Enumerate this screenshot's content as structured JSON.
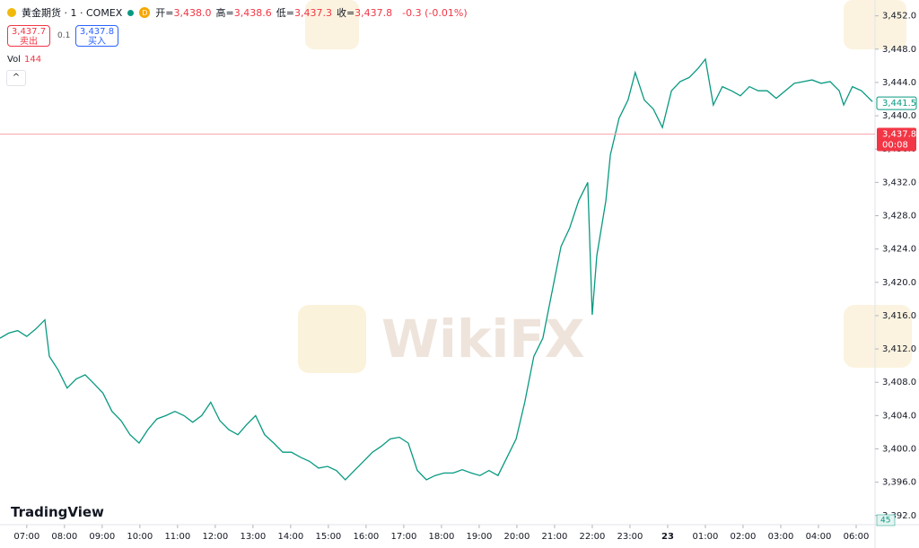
{
  "chart_data": {
    "type": "line",
    "symbol": "黄金期货 · 1 · COMEX",
    "interval_badge": "D",
    "ohlc": [
      {
        "label": "开=",
        "value": "3,438.0"
      },
      {
        "label": "高=",
        "value": "3,438.6"
      },
      {
        "label": "低=",
        "value": "3,437.3"
      },
      {
        "label": "收=",
        "value": "3,437.8"
      }
    ],
    "change": "-0.3 (-0.01%)",
    "sell": {
      "price": "3,437.7",
      "label": "卖出"
    },
    "spread": "0.1",
    "buy": {
      "price": "3,437.8",
      "label": "买入"
    },
    "volume_label": "Vol",
    "volume_value": "144",
    "volume_axis_label": "45",
    "watermark": "WikiFX",
    "brand": "TradingView",
    "color": "#089981",
    "grid": false,
    "x": [
      -0.71,
      -0.48,
      -0.24,
      0,
      0.24,
      0.48,
      0.6,
      0.83,
      1.07,
      1.31,
      1.55,
      1.79,
      2.02,
      2.26,
      2.5,
      2.74,
      2.98,
      3.21,
      3.45,
      3.69,
      3.93,
      4.17,
      4.4,
      4.64,
      4.88,
      5.12,
      5.36,
      5.6,
      5.83,
      6.07,
      6.31,
      6.55,
      6.79,
      7.02,
      7.26,
      7.5,
      7.74,
      7.98,
      8.21,
      8.45,
      8.69,
      8.93,
      9.17,
      9.4,
      9.64,
      9.88,
      10.12,
      10.36,
      10.6,
      10.83,
      11.07,
      11.31,
      11.55,
      11.79,
      12.02,
      12.26,
      12.5,
      12.74,
      12.98,
      13.21,
      13.45,
      13.69,
      13.93,
      14.17,
      14.4,
      14.64,
      14.88,
      15,
      15.12,
      15.36,
      15.48,
      15.71,
      15.95,
      16.14,
      16.38,
      16.62,
      16.86,
      17.1,
      17.33,
      17.57,
      17.81,
      18,
      18.21,
      18.45,
      18.69,
      18.93,
      19.17,
      19.4,
      19.64,
      19.88,
      20.12,
      20.36,
      20.6,
      20.83,
      21.07,
      21.31,
      21.55,
      21.67,
      21.9,
      22.14,
      22.43
    ],
    "values": [
      3413.3,
      3413.9,
      3414.2,
      3413.5,
      3414.4,
      3415.5,
      3411.1,
      3409.5,
      3407.3,
      3408.4,
      3408.9,
      3407.8,
      3406.7,
      3404.5,
      3403.4,
      3401.7,
      3400.7,
      3402.3,
      3403.6,
      3404.0,
      3404.5,
      3404.0,
      3403.2,
      3404.0,
      3405.6,
      3403.4,
      3402.3,
      3401.7,
      3402.9,
      3404.0,
      3401.7,
      3400.7,
      3399.6,
      3399.6,
      3399.0,
      3398.5,
      3397.7,
      3397.9,
      3397.4,
      3396.3,
      3397.4,
      3398.5,
      3399.6,
      3400.3,
      3401.2,
      3401.4,
      3400.7,
      3397.4,
      3396.3,
      3396.8,
      3397.1,
      3397.1,
      3397.5,
      3397.1,
      3396.8,
      3397.4,
      3396.8,
      3399.0,
      3401.2,
      3405.6,
      3411.1,
      3413.3,
      3418.8,
      3424.3,
      3426.5,
      3429.8,
      3432.0,
      3416.1,
      3423.2,
      3429.8,
      3435.3,
      3439.7,
      3441.9,
      3445.2,
      3441.9,
      3440.8,
      3438.6,
      3443.0,
      3444.1,
      3444.6,
      3445.7,
      3446.8,
      3441.3,
      3443.5,
      3443.0,
      3442.4,
      3443.5,
      3443.0,
      3443.0,
      3442.1,
      3443.0,
      3443.9,
      3444.1,
      3444.3,
      3443.9,
      3444.1,
      3443.0,
      3441.3,
      3443.5,
      3443.0,
      3441.7
    ],
    "xlim": [
      -0.71,
      22.5
    ],
    "xticks": [
      {
        "value": 0,
        "label": "07:00"
      },
      {
        "value": 1,
        "label": "08:00"
      },
      {
        "value": 2,
        "label": "09:00"
      },
      {
        "value": 3,
        "label": "10:00"
      },
      {
        "value": 4,
        "label": "11:00"
      },
      {
        "value": 5,
        "label": "12:00"
      },
      {
        "value": 6,
        "label": "13:00"
      },
      {
        "value": 7,
        "label": "14:00"
      },
      {
        "value": 8,
        "label": "15:00"
      },
      {
        "value": 9,
        "label": "16:00"
      },
      {
        "value": 10,
        "label": "17:00"
      },
      {
        "value": 11,
        "label": "18:00"
      },
      {
        "value": 12,
        "label": "19:00"
      },
      {
        "value": 13,
        "label": "20:00"
      },
      {
        "value": 14,
        "label": "21:00"
      },
      {
        "value": 15,
        "label": "22:00"
      },
      {
        "value": 16,
        "label": "23:00"
      },
      {
        "value": 17,
        "label": "23"
      },
      {
        "value": 18,
        "label": "01:00"
      },
      {
        "value": 19,
        "label": "02:00"
      },
      {
        "value": 20,
        "label": "03:00"
      },
      {
        "value": 21,
        "label": "04:00"
      },
      {
        "value": 22,
        "label": "06:00"
      }
    ],
    "ylim": [
      3390.9,
      3453.9
    ],
    "yticks": [
      {
        "value": 3392,
        "label": "3,392.0"
      },
      {
        "value": 3396,
        "label": "3,396.0"
      },
      {
        "value": 3400,
        "label": "3,400.0"
      },
      {
        "value": 3404,
        "label": "3,404.0"
      },
      {
        "value": 3408,
        "label": "3,408.0"
      },
      {
        "value": 3412,
        "label": "3,412.0"
      },
      {
        "value": 3416,
        "label": "3,416.0"
      },
      {
        "value": 3420,
        "label": "3,420.0"
      },
      {
        "value": 3424,
        "label": "3,424.0"
      },
      {
        "value": 3428,
        "label": "3,428.0"
      },
      {
        "value": 3432,
        "label": "3,432.0"
      },
      {
        "value": 3436,
        "label": "3,436.0"
      },
      {
        "value": 3440,
        "label": "3,440.0"
      },
      {
        "value": 3444,
        "label": "3,444.0"
      },
      {
        "value": 3448,
        "label": "3,448.0"
      },
      {
        "value": 3452,
        "label": "3,452.0"
      }
    ],
    "marker_price": {
      "value": 3441.5,
      "label": "3,441.5"
    },
    "last_price": {
      "value": 3437.8,
      "label": "3,437.8",
      "countdown": "00:08"
    }
  }
}
